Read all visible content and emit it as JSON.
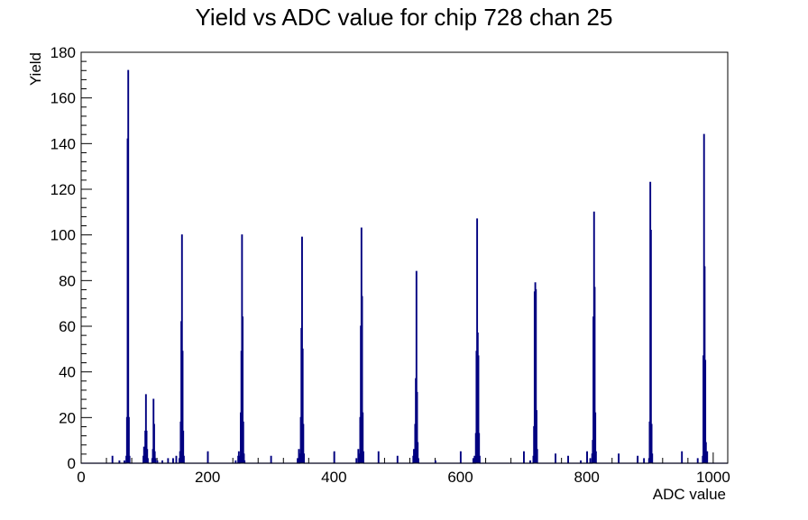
{
  "chart_data": {
    "type": "bar",
    "title": "Yield vs ADC value for chip 728 chan 25",
    "xlabel": "ADC value",
    "ylabel": "Yield",
    "xlim": [
      0,
      1023
    ],
    "ylim": [
      0,
      180
    ],
    "x_major_ticks": [
      0,
      200,
      400,
      600,
      800,
      1000
    ],
    "y_major_ticks": [
      0,
      20,
      40,
      60,
      80,
      100,
      120,
      140,
      160,
      180
    ],
    "line_color": "#000080",
    "grid": false,
    "legend": "none",
    "series": [
      {
        "bins": [
          [
            49,
            3
          ],
          [
            60,
            1
          ],
          [
            68,
            1
          ],
          [
            71,
            3
          ],
          [
            72,
            20
          ],
          [
            73,
            142
          ],
          [
            74,
            172
          ],
          [
            75,
            20
          ],
          [
            76,
            3
          ],
          [
            98,
            3
          ],
          [
            99,
            7
          ],
          [
            100,
            6
          ],
          [
            101,
            14
          ],
          [
            102,
            30
          ],
          [
            103,
            14
          ],
          [
            104,
            6
          ],
          [
            105,
            2
          ],
          [
            112,
            2
          ],
          [
            113,
            6
          ],
          [
            114,
            28
          ],
          [
            115,
            17
          ],
          [
            116,
            5
          ],
          [
            117,
            2
          ],
          [
            120,
            1
          ],
          [
            128,
            1
          ],
          [
            137,
            2
          ],
          [
            145,
            2
          ],
          [
            150,
            3
          ],
          [
            155,
            2
          ],
          [
            156,
            5
          ],
          [
            157,
            18
          ],
          [
            158,
            62
          ],
          [
            159,
            100
          ],
          [
            160,
            49
          ],
          [
            161,
            14
          ],
          [
            162,
            3
          ],
          [
            200,
            5
          ],
          [
            244,
            1
          ],
          [
            248,
            3
          ],
          [
            249,
            5
          ],
          [
            251,
            3
          ],
          [
            252,
            22
          ],
          [
            253,
            49
          ],
          [
            254,
            100
          ],
          [
            255,
            64
          ],
          [
            256,
            18
          ],
          [
            257,
            4
          ],
          [
            258,
            1
          ],
          [
            300,
            3
          ],
          [
            342,
            2
          ],
          [
            344,
            6
          ],
          [
            346,
            4
          ],
          [
            347,
            20
          ],
          [
            348,
            59
          ],
          [
            349,
            99
          ],
          [
            350,
            50
          ],
          [
            351,
            17
          ],
          [
            352,
            4
          ],
          [
            400,
            5
          ],
          [
            435,
            2
          ],
          [
            438,
            6
          ],
          [
            440,
            4
          ],
          [
            441,
            20
          ],
          [
            442,
            60
          ],
          [
            443,
            103
          ],
          [
            444,
            73
          ],
          [
            445,
            22
          ],
          [
            446,
            5
          ],
          [
            470,
            5
          ],
          [
            500,
            3
          ],
          [
            525,
            3
          ],
          [
            526,
            6
          ],
          [
            527,
            2
          ],
          [
            528,
            17
          ],
          [
            529,
            37
          ],
          [
            530,
            84
          ],
          [
            531,
            31
          ],
          [
            532,
            9
          ],
          [
            533,
            2
          ],
          [
            560,
            1
          ],
          [
            600,
            5
          ],
          [
            620,
            2
          ],
          [
            622,
            3
          ],
          [
            624,
            13
          ],
          [
            625,
            49
          ],
          [
            626,
            107
          ],
          [
            627,
            57
          ],
          [
            628,
            47
          ],
          [
            629,
            13
          ],
          [
            630,
            3
          ],
          [
            700,
            5
          ],
          [
            710,
            1
          ],
          [
            715,
            3
          ],
          [
            716,
            16
          ],
          [
            717,
            75
          ],
          [
            718,
            79
          ],
          [
            719,
            76
          ],
          [
            720,
            23
          ],
          [
            721,
            6
          ],
          [
            750,
            4
          ],
          [
            770,
            3
          ],
          [
            790,
            1
          ],
          [
            800,
            5
          ],
          [
            805,
            2
          ],
          [
            808,
            4
          ],
          [
            809,
            10
          ],
          [
            810,
            64
          ],
          [
            811,
            110
          ],
          [
            812,
            77
          ],
          [
            813,
            22
          ],
          [
            814,
            5
          ],
          [
            850,
            4
          ],
          [
            880,
            3
          ],
          [
            890,
            2
          ],
          [
            898,
            2
          ],
          [
            899,
            18
          ],
          [
            900,
            123
          ],
          [
            901,
            102
          ],
          [
            902,
            17
          ],
          [
            903,
            4
          ],
          [
            950,
            5
          ],
          [
            975,
            2
          ],
          [
            983,
            3
          ],
          [
            984,
            47
          ],
          [
            985,
            144
          ],
          [
            986,
            86
          ],
          [
            987,
            45
          ],
          [
            988,
            9
          ],
          [
            990,
            5
          ]
        ]
      }
    ]
  }
}
